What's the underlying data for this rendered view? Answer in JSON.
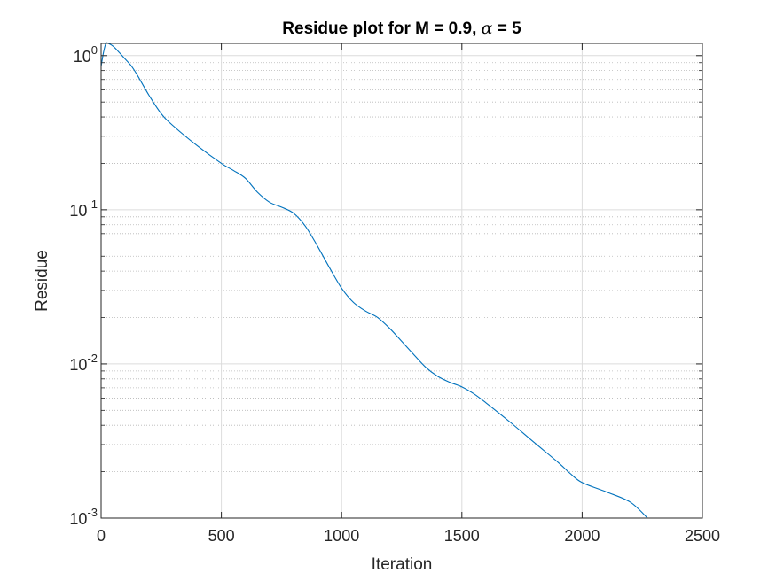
{
  "chart_data": {
    "type": "line",
    "title": {
      "prefix": "Residue plot for M = 0.9, ",
      "symbol": "α",
      "suffix": " = 5"
    },
    "xlabel": "Iteration",
    "ylabel": "Residue",
    "xlim": [
      0,
      2500
    ],
    "ylim": [
      0.001,
      1.2
    ],
    "yscale": "log",
    "grid": true,
    "minor_grid": true,
    "x_ticks": [
      0,
      500,
      1000,
      1500,
      2000,
      2500
    ],
    "x_tick_labels": [
      "0",
      "500",
      "1000",
      "1500",
      "2000",
      "2500"
    ],
    "y_ticks": [
      {
        "value": 1,
        "base": "10",
        "exp": "0"
      },
      {
        "value": 0.1,
        "base": "10",
        "exp": "-1"
      },
      {
        "value": 0.01,
        "base": "10",
        "exp": "-2"
      },
      {
        "value": 0.001,
        "base": "10",
        "exp": "-3"
      }
    ],
    "series": [
      {
        "color": "#0072bd",
        "x": [
          0,
          10,
          20,
          30,
          50,
          75,
          100,
          125,
          150,
          200,
          250,
          300,
          400,
          500,
          550,
          600,
          650,
          700,
          750,
          800,
          850,
          900,
          950,
          1000,
          1050,
          1100,
          1150,
          1200,
          1250,
          1300,
          1350,
          1400,
          1450,
          1500,
          1550,
          1600,
          1700,
          1800,
          1900,
          1950,
          2000,
          2100,
          2200,
          2272
        ],
        "y": [
          0.85,
          1.05,
          1.2,
          1.2,
          1.15,
          1.05,
          0.95,
          0.86,
          0.75,
          0.55,
          0.42,
          0.35,
          0.26,
          0.2,
          0.18,
          0.16,
          0.13,
          0.112,
          0.104,
          0.095,
          0.078,
          0.058,
          0.042,
          0.031,
          0.025,
          0.022,
          0.02,
          0.017,
          0.014,
          0.0115,
          0.0095,
          0.0083,
          0.0076,
          0.0071,
          0.0064,
          0.0056,
          0.0042,
          0.0031,
          0.0023,
          0.00195,
          0.0017,
          0.00148,
          0.00127,
          0.001
        ]
      }
    ]
  }
}
